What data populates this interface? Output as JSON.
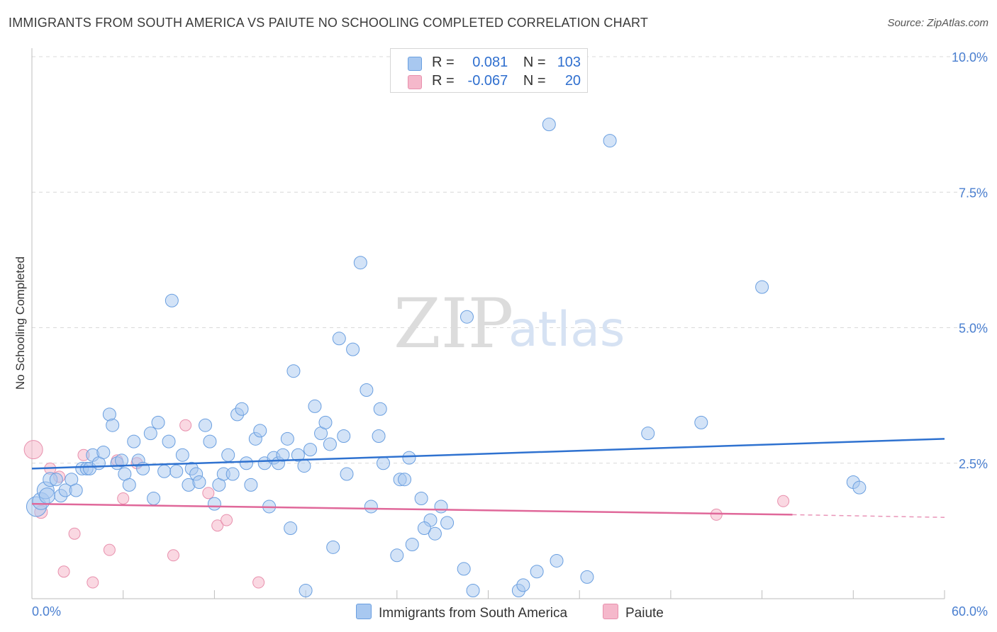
{
  "header": {
    "title": "IMMIGRANTS FROM SOUTH AMERICA VS PAIUTE NO SCHOOLING COMPLETED CORRELATION CHART",
    "source": "Source: ZipAtlas.com"
  },
  "watermark": {
    "part1": "ZIP",
    "part2": "atlas"
  },
  "legend": {
    "rows": [
      {
        "r_label": "R =",
        "r_value": "0.081",
        "n_label": "N =",
        "n_value": "103",
        "color": "#a8c8f0"
      },
      {
        "r_label": "R =",
        "r_value": "-0.067",
        "n_label": "N =",
        "n_value": "20",
        "color": "#f5b8cb"
      }
    ]
  },
  "bottom_legend": {
    "series1": "Immigrants from South America",
    "series2": "Paiute"
  },
  "colors": {
    "blue_fill": "#a8c8f0",
    "blue_stroke": "#6a9fe0",
    "blue_line": "#2f72d0",
    "pink_fill": "#f5b8cb",
    "pink_stroke": "#e890ad",
    "pink_line": "#e0689a",
    "tick_text": "#4a7fd0",
    "grid": "#d8d8d8"
  },
  "chart_data": {
    "type": "scatter",
    "title": "IMMIGRANTS FROM SOUTH AMERICA VS PAIUTE NO SCHOOLING COMPLETED CORRELATION CHART",
    "xlabel": "",
    "ylabel": "No Schooling Completed",
    "xlim": [
      0,
      60
    ],
    "ylim": [
      0,
      10
    ],
    "x_tick_labels": [
      "0.0%",
      "60.0%"
    ],
    "y_ticks": [
      2.5,
      5.0,
      7.5,
      10.0
    ],
    "y_tick_labels": [
      "2.5%",
      "5.0%",
      "7.5%",
      "10.0%"
    ],
    "grid": true,
    "series": [
      {
        "name": "Immigrants from South America",
        "R": 0.081,
        "N": 103,
        "trend": {
          "x": [
            0,
            60
          ],
          "y": [
            2.4,
            2.95
          ]
        },
        "points": [
          [
            0.3,
            1.7,
            14
          ],
          [
            0.6,
            1.8,
            12
          ],
          [
            0.9,
            2.0,
            12
          ],
          [
            1.0,
            1.9,
            11
          ],
          [
            1.2,
            2.2,
            10
          ],
          [
            1.6,
            2.2,
            9
          ],
          [
            1.9,
            1.9,
            9
          ],
          [
            2.2,
            2.0,
            9
          ],
          [
            2.6,
            2.2,
            9
          ],
          [
            2.9,
            2.0,
            9
          ],
          [
            3.3,
            2.4,
            9
          ],
          [
            3.6,
            2.4,
            9
          ],
          [
            3.8,
            2.4,
            9
          ],
          [
            4.0,
            2.65,
            9
          ],
          [
            4.4,
            2.5,
            9
          ],
          [
            4.7,
            2.7,
            9
          ],
          [
            5.1,
            3.4,
            9
          ],
          [
            5.3,
            3.2,
            9
          ],
          [
            5.6,
            2.5,
            9
          ],
          [
            5.9,
            2.55,
            9
          ],
          [
            6.1,
            2.3,
            9
          ],
          [
            6.4,
            2.1,
            9
          ],
          [
            6.7,
            2.9,
            9
          ],
          [
            7.0,
            2.55,
            9
          ],
          [
            7.3,
            2.4,
            9
          ],
          [
            7.8,
            3.05,
            9
          ],
          [
            8.0,
            1.85,
            9
          ],
          [
            8.3,
            3.25,
            9
          ],
          [
            8.7,
            2.35,
            9
          ],
          [
            9.0,
            2.9,
            9
          ],
          [
            9.2,
            5.5,
            9
          ],
          [
            9.5,
            2.35,
            9
          ],
          [
            9.9,
            2.65,
            9
          ],
          [
            10.3,
            2.1,
            9
          ],
          [
            10.5,
            2.4,
            9
          ],
          [
            10.8,
            2.3,
            9
          ],
          [
            11.0,
            2.15,
            9
          ],
          [
            11.4,
            3.2,
            9
          ],
          [
            11.7,
            2.9,
            9
          ],
          [
            12.0,
            1.75,
            9
          ],
          [
            12.3,
            2.1,
            9
          ],
          [
            12.6,
            2.3,
            9
          ],
          [
            12.9,
            2.65,
            9
          ],
          [
            13.2,
            2.3,
            9
          ],
          [
            13.5,
            3.4,
            9
          ],
          [
            13.8,
            3.5,
            9
          ],
          [
            14.1,
            2.5,
            9
          ],
          [
            14.4,
            2.1,
            9
          ],
          [
            14.7,
            2.95,
            9
          ],
          [
            15.0,
            3.1,
            9
          ],
          [
            15.3,
            2.5,
            9
          ],
          [
            15.6,
            1.7,
            9
          ],
          [
            15.9,
            2.6,
            9
          ],
          [
            16.2,
            2.5,
            9
          ],
          [
            16.5,
            2.65,
            9
          ],
          [
            16.8,
            2.95,
            9
          ],
          [
            17.2,
            4.2,
            9
          ],
          [
            17.5,
            2.65,
            9
          ],
          [
            17.9,
            2.45,
            9
          ],
          [
            18.3,
            2.75,
            9
          ],
          [
            18.6,
            3.55,
            9
          ],
          [
            19.0,
            3.05,
            9
          ],
          [
            19.3,
            3.25,
            9
          ],
          [
            19.6,
            2.85,
            9
          ],
          [
            20.2,
            4.8,
            9
          ],
          [
            20.5,
            3.0,
            9
          ],
          [
            20.7,
            2.3,
            9
          ],
          [
            21.1,
            4.6,
            9
          ],
          [
            21.6,
            6.2,
            9
          ],
          [
            22.0,
            3.85,
            9
          ],
          [
            22.3,
            1.7,
            9
          ],
          [
            22.9,
            3.5,
            9
          ],
          [
            22.8,
            3.0,
            9
          ],
          [
            23.1,
            2.5,
            9
          ],
          [
            24.2,
            2.2,
            9
          ],
          [
            24.5,
            2.2,
            9
          ],
          [
            24.8,
            2.6,
            9
          ],
          [
            25.6,
            1.85,
            9
          ],
          [
            26.2,
            1.45,
            9
          ],
          [
            26.9,
            1.7,
            9
          ],
          [
            27.3,
            1.4,
            9
          ],
          [
            28.4,
            0.55,
            9
          ],
          [
            28.6,
            5.2,
            9
          ],
          [
            29.0,
            0.15,
            9
          ],
          [
            32.0,
            0.15,
            9
          ],
          [
            32.3,
            0.25,
            9
          ],
          [
            33.2,
            0.5,
            9
          ],
          [
            34.5,
            0.7,
            9
          ],
          [
            36.5,
            0.4,
            9
          ],
          [
            17.0,
            1.3,
            9
          ],
          [
            18.0,
            0.15,
            9
          ],
          [
            19.8,
            0.95,
            9
          ],
          [
            24.0,
            0.8,
            9
          ],
          [
            25.0,
            1.0,
            9
          ],
          [
            26.5,
            1.2,
            9
          ],
          [
            25.8,
            1.3,
            9
          ],
          [
            34.0,
            8.75,
            9
          ],
          [
            38.0,
            8.45,
            9
          ],
          [
            40.5,
            3.05,
            9
          ],
          [
            44.0,
            3.25,
            9
          ],
          [
            48.0,
            5.75,
            9
          ],
          [
            54.0,
            2.15,
            9
          ],
          [
            54.4,
            2.05,
            9
          ]
        ]
      },
      {
        "name": "Paiute",
        "R": -0.067,
        "N": 20,
        "trend": {
          "x": [
            0,
            50
          ],
          "y": [
            1.75,
            1.55
          ]
        },
        "trend_dashed": {
          "x": [
            50,
            60
          ],
          "y": [
            1.55,
            1.5
          ]
        },
        "points": [
          [
            0.1,
            2.75,
            13
          ],
          [
            0.6,
            1.6,
            9
          ],
          [
            1.2,
            2.4,
            8
          ],
          [
            1.8,
            2.25,
            8
          ],
          [
            2.1,
            0.5,
            8
          ],
          [
            2.8,
            1.2,
            8
          ],
          [
            3.4,
            2.65,
            8
          ],
          [
            4.0,
            0.3,
            8
          ],
          [
            5.1,
            0.9,
            8
          ],
          [
            5.6,
            2.55,
            8
          ],
          [
            6.0,
            1.85,
            8
          ],
          [
            6.9,
            2.5,
            8
          ],
          [
            9.3,
            0.8,
            8
          ],
          [
            10.1,
            3.2,
            8
          ],
          [
            11.6,
            1.95,
            8
          ],
          [
            12.2,
            1.35,
            8
          ],
          [
            12.8,
            1.45,
            8
          ],
          [
            14.9,
            0.3,
            8
          ],
          [
            45.0,
            1.55,
            8
          ],
          [
            49.4,
            1.8,
            8
          ]
        ]
      }
    ]
  }
}
